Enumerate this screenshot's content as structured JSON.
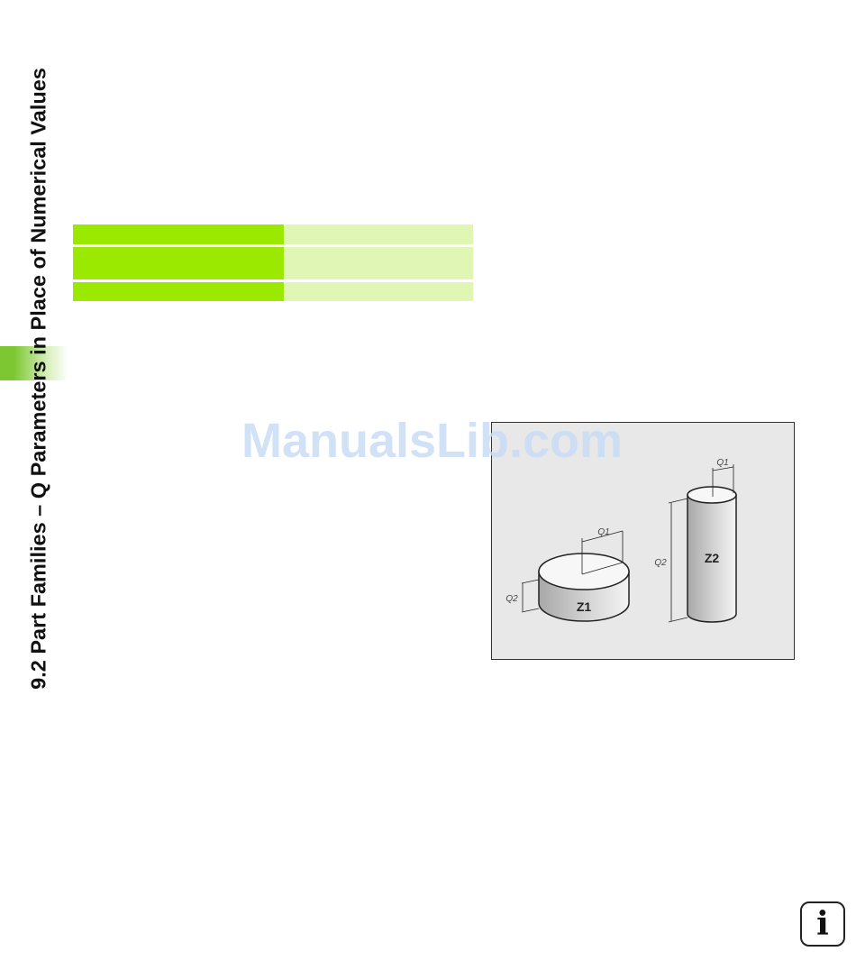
{
  "chapter": {
    "title": "9.2 Part Families – Q Parameters in Place of Numerical Values"
  },
  "table": {
    "rows": 3,
    "label_color": "#9be800",
    "value_color": "#e0f6b4"
  },
  "watermark": "ManualsLib.com",
  "figure": {
    "part1": {
      "label": "Z1",
      "diameter_label": "Q1",
      "height_label": "Q2"
    },
    "part2": {
      "label": "Z2",
      "diameter_label": "Q1",
      "height_label": "Q2"
    }
  },
  "info_icon": {
    "glyph": "i"
  }
}
